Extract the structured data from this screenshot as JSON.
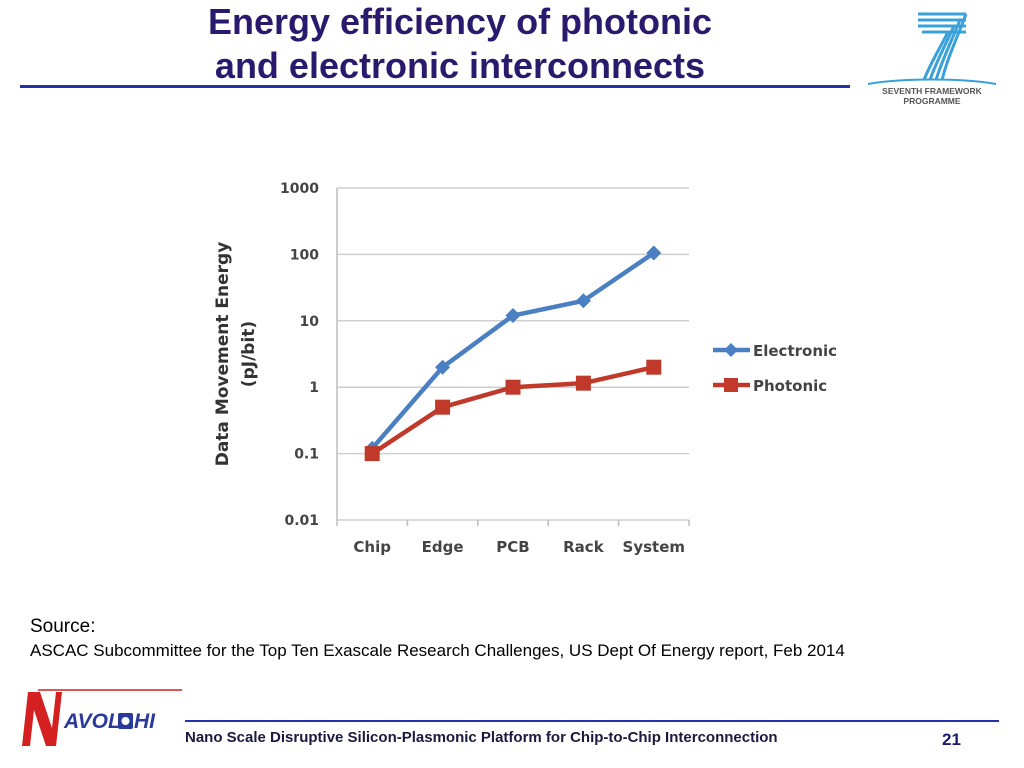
{
  "slide": {
    "title_line1": "Energy efficiency of photonic",
    "title_line2": "and electronic interconnects",
    "fp7_logo_text_line1": "SEVENTH FRAMEWORK",
    "fp7_logo_text_line2": "PROGRAMME",
    "source_label": "Source:",
    "source_text": "ASCAC Subcommittee for the Top Ten Exascale Research Challenges, US Dept Of Energy report, Feb 2014",
    "nav_logo_text": "AVOL",
    "nav_logo_text2": "HI",
    "footer_text": "Nano Scale Disruptive Silicon-Plasmonic Platform for Chip-to-Chip Interconnection",
    "page_number": "21",
    "colors": {
      "title": "#2a1a6e",
      "rule": "#2233aa",
      "electronic": "#4a7fc1",
      "photonic": "#c0392b"
    }
  },
  "chart_data": {
    "type": "line",
    "title": "",
    "xlabel": "",
    "ylabel_line1": "Data Movement Energy",
    "ylabel_line2": "(pJ/bit)",
    "y_scale": "log",
    "ylim": [
      0.01,
      1000
    ],
    "y_ticks": [
      "1000",
      "100",
      "10",
      "1",
      "0.1",
      "0.01"
    ],
    "y_tick_values": [
      1000,
      100,
      10,
      1,
      0.1,
      0.01
    ],
    "categories": [
      "Chip",
      "Edge",
      "PCB",
      "Rack",
      "System"
    ],
    "grid": true,
    "legend_position": "right",
    "series": [
      {
        "name": "Electronic",
        "values": [
          0.12,
          2,
          12,
          20,
          105
        ],
        "color": "#4a7fc1",
        "marker": "diamond"
      },
      {
        "name": "Photonic",
        "values": [
          0.1,
          0.5,
          1,
          1.15,
          2
        ],
        "color": "#c0392b",
        "marker": "square"
      }
    ]
  }
}
